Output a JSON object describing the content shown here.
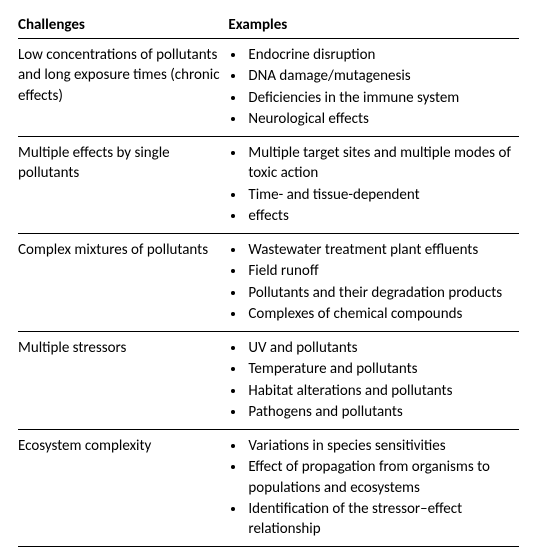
{
  "table": {
    "headers": [
      "Challenges",
      "Examples"
    ],
    "rows": [
      {
        "challenge": "Low concentrations of pollutants and long exposure times (chronic effects)",
        "examples": [
          "Endocrine disruption",
          "DNA damage/mutagenesis",
          "Deficiencies in the immune system",
          "Neurological effects"
        ]
      },
      {
        "challenge": "Multiple effects by single pollutants",
        "examples": [
          "Multiple target sites and multiple modes of toxic action",
          "Time- and tissue-dependent",
          "effects"
        ]
      },
      {
        "challenge": "Complex mixtures of pollutants",
        "examples": [
          "Wastewater treatment plant effluents",
          "Field runoff",
          "Pollutants and their degradation products",
          "Complexes of chemical compounds"
        ]
      },
      {
        "challenge": "Multiple stressors",
        "examples": [
          "UV and pollutants",
          "Temperature and pollutants",
          "Habitat alterations and pollutants",
          "Pathogens and pollutants"
        ]
      },
      {
        "challenge": "Ecosystem complexity",
        "examples": [
          "Variations in species sensitivities",
          "Effect of propagation from organisms to populations and ecosystems",
          "Identification of the stressor–effect relationship"
        ]
      }
    ]
  }
}
